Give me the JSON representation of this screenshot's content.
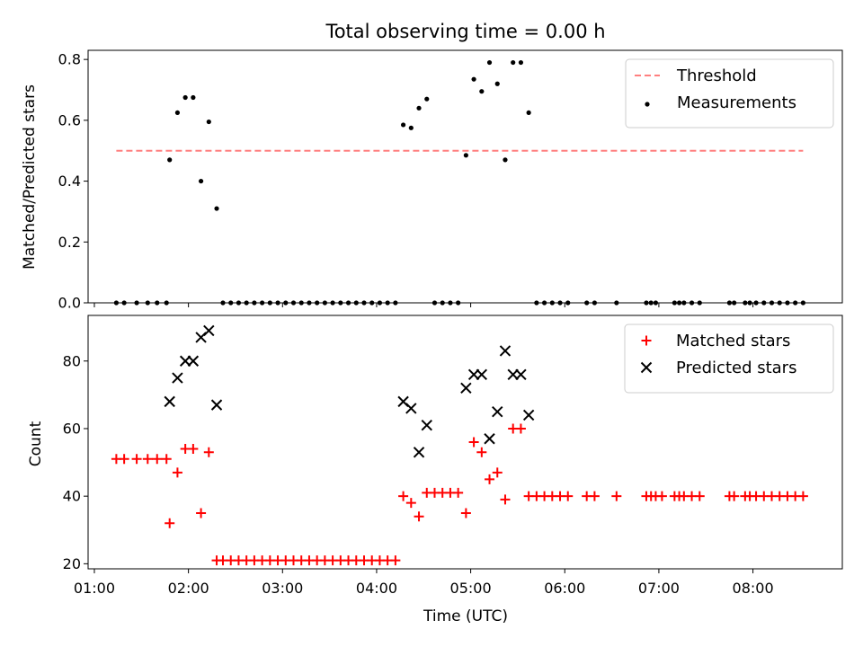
{
  "chart_data": [
    {
      "type": "scatter",
      "title": "Total observing time = 0.00 h",
      "ylabel": "Matched/Predicted stars",
      "xlabel": "",
      "xlim": [
        "00:56",
        "08:57"
      ],
      "ylim": [
        0,
        0.83
      ],
      "yticks": [
        0.0,
        0.2,
        0.4,
        0.6,
        0.8
      ],
      "ytick_labels": [
        "0.0",
        "0.2",
        "0.4",
        "0.6",
        "0.8"
      ],
      "xticks": [
        "01:00",
        "02:00",
        "03:00",
        "04:00",
        "05:00",
        "06:00",
        "07:00",
        "08:00"
      ],
      "legend_position": "top-right",
      "threshold": {
        "name": "Threshold",
        "value": 0.5,
        "x_start": "01:14",
        "x_end": "08:32",
        "color": "#ff7f7f",
        "style": "dashed"
      },
      "series": [
        {
          "name": "Measurements",
          "marker": "dot",
          "color": "#000000",
          "points": [
            [
              "01:14",
              0.0
            ],
            [
              "01:19",
              0.0
            ],
            [
              "01:27",
              0.0
            ],
            [
              "01:34",
              0.0
            ],
            [
              "01:40",
              0.0
            ],
            [
              "01:46",
              0.0
            ],
            [
              "01:48",
              0.47
            ],
            [
              "01:53",
              0.625
            ],
            [
              "01:58",
              0.675
            ],
            [
              "02:03",
              0.675
            ],
            [
              "02:08",
              0.4
            ],
            [
              "02:13",
              0.595
            ],
            [
              "02:18",
              0.31
            ],
            [
              "02:22",
              0.0
            ],
            [
              "02:27",
              0.0
            ],
            [
              "02:32",
              0.0
            ],
            [
              "02:37",
              0.0
            ],
            [
              "02:42",
              0.0
            ],
            [
              "02:47",
              0.0
            ],
            [
              "02:52",
              0.0
            ],
            [
              "02:57",
              0.0
            ],
            [
              "03:02",
              0.0
            ],
            [
              "03:07",
              0.0
            ],
            [
              "03:12",
              0.0
            ],
            [
              "03:17",
              0.0
            ],
            [
              "03:22",
              0.0
            ],
            [
              "03:27",
              0.0
            ],
            [
              "03:32",
              0.0
            ],
            [
              "03:37",
              0.0
            ],
            [
              "03:42",
              0.0
            ],
            [
              "03:47",
              0.0
            ],
            [
              "03:52",
              0.0
            ],
            [
              "03:57",
              0.0
            ],
            [
              "04:02",
              0.0
            ],
            [
              "04:07",
              0.0
            ],
            [
              "04:12",
              0.0
            ],
            [
              "04:17",
              0.585
            ],
            [
              "04:22",
              0.575
            ],
            [
              "04:27",
              0.64
            ],
            [
              "04:32",
              0.67
            ],
            [
              "04:37",
              0.0
            ],
            [
              "04:42",
              0.0
            ],
            [
              "04:47",
              0.0
            ],
            [
              "04:52",
              0.0
            ],
            [
              "04:57",
              0.485
            ],
            [
              "05:02",
              0.735
            ],
            [
              "05:07",
              0.695
            ],
            [
              "05:12",
              0.79
            ],
            [
              "05:17",
              0.72
            ],
            [
              "05:22",
              0.47
            ],
            [
              "05:27",
              0.79
            ],
            [
              "05:32",
              0.79
            ],
            [
              "05:37",
              0.625
            ],
            [
              "05:42",
              0.0
            ],
            [
              "05:47",
              0.0
            ],
            [
              "05:52",
              0.0
            ],
            [
              "05:57",
              0.0
            ],
            [
              "06:02",
              0.0
            ],
            [
              "06:14",
              0.0
            ],
            [
              "06:19",
              0.0
            ],
            [
              "06:33",
              0.0
            ],
            [
              "06:52",
              0.0
            ],
            [
              "06:55",
              0.0
            ],
            [
              "06:58",
              0.0
            ],
            [
              "07:10",
              0.0
            ],
            [
              "07:13",
              0.0
            ],
            [
              "07:16",
              0.0
            ],
            [
              "07:21",
              0.0
            ],
            [
              "07:26",
              0.0
            ],
            [
              "07:45",
              0.0
            ],
            [
              "07:48",
              0.0
            ],
            [
              "07:55",
              0.0
            ],
            [
              "07:58",
              0.0
            ],
            [
              "08:02",
              0.0
            ],
            [
              "08:07",
              0.0
            ],
            [
              "08:12",
              0.0
            ],
            [
              "08:17",
              0.0
            ],
            [
              "08:22",
              0.0
            ],
            [
              "08:27",
              0.0
            ],
            [
              "08:32",
              0.0
            ]
          ]
        }
      ]
    },
    {
      "type": "scatter",
      "title": "",
      "ylabel": "Count",
      "xlabel": "Time (UTC)",
      "xlim": [
        "00:56",
        "08:57"
      ],
      "ylim": [
        18.5,
        93.5
      ],
      "yticks": [
        20,
        40,
        60,
        80
      ],
      "ytick_labels": [
        "20",
        "40",
        "60",
        "80"
      ],
      "xticks": [
        "01:00",
        "02:00",
        "03:00",
        "04:00",
        "05:00",
        "06:00",
        "07:00",
        "08:00"
      ],
      "xtick_labels": [
        "01:00",
        "02:00",
        "03:00",
        "04:00",
        "05:00",
        "06:00",
        "07:00",
        "08:00"
      ],
      "legend_position": "top-right",
      "series": [
        {
          "name": "Matched stars",
          "marker": "plus",
          "color": "#ff0000",
          "points": [
            [
              "01:14",
              51
            ],
            [
              "01:19",
              51
            ],
            [
              "01:27",
              51
            ],
            [
              "01:34",
              51
            ],
            [
              "01:40",
              51
            ],
            [
              "01:46",
              51
            ],
            [
              "01:48",
              32
            ],
            [
              "01:53",
              47
            ],
            [
              "01:58",
              54
            ],
            [
              "02:03",
              54
            ],
            [
              "02:08",
              35
            ],
            [
              "02:13",
              53
            ],
            [
              "02:18",
              21
            ],
            [
              "02:22",
              21
            ],
            [
              "02:27",
              21
            ],
            [
              "02:32",
              21
            ],
            [
              "02:37",
              21
            ],
            [
              "02:42",
              21
            ],
            [
              "02:47",
              21
            ],
            [
              "02:52",
              21
            ],
            [
              "02:57",
              21
            ],
            [
              "03:02",
              21
            ],
            [
              "03:07",
              21
            ],
            [
              "03:12",
              21
            ],
            [
              "03:17",
              21
            ],
            [
              "03:22",
              21
            ],
            [
              "03:27",
              21
            ],
            [
              "03:32",
              21
            ],
            [
              "03:37",
              21
            ],
            [
              "03:42",
              21
            ],
            [
              "03:47",
              21
            ],
            [
              "03:52",
              21
            ],
            [
              "03:57",
              21
            ],
            [
              "04:02",
              21
            ],
            [
              "04:07",
              21
            ],
            [
              "04:12",
              21
            ],
            [
              "04:17",
              40
            ],
            [
              "04:22",
              38
            ],
            [
              "04:27",
              34
            ],
            [
              "04:32",
              41
            ],
            [
              "04:37",
              41
            ],
            [
              "04:42",
              41
            ],
            [
              "04:47",
              41
            ],
            [
              "04:52",
              41
            ],
            [
              "04:57",
              35
            ],
            [
              "05:02",
              56
            ],
            [
              "05:07",
              53
            ],
            [
              "05:12",
              45
            ],
            [
              "05:17",
              47
            ],
            [
              "05:22",
              39
            ],
            [
              "05:27",
              60
            ],
            [
              "05:32",
              60
            ],
            [
              "05:37",
              40
            ],
            [
              "05:42",
              40
            ],
            [
              "05:47",
              40
            ],
            [
              "05:52",
              40
            ],
            [
              "05:57",
              40
            ],
            [
              "06:02",
              40
            ],
            [
              "06:14",
              40
            ],
            [
              "06:19",
              40
            ],
            [
              "06:33",
              40
            ],
            [
              "06:52",
              40
            ],
            [
              "06:55",
              40
            ],
            [
              "06:58",
              40
            ],
            [
              "07:02",
              40
            ],
            [
              "07:10",
              40
            ],
            [
              "07:13",
              40
            ],
            [
              "07:16",
              40
            ],
            [
              "07:21",
              40
            ],
            [
              "07:26",
              40
            ],
            [
              "07:45",
              40
            ],
            [
              "07:48",
              40
            ],
            [
              "07:55",
              40
            ],
            [
              "07:58",
              40
            ],
            [
              "08:02",
              40
            ],
            [
              "08:07",
              40
            ],
            [
              "08:12",
              40
            ],
            [
              "08:17",
              40
            ],
            [
              "08:22",
              40
            ],
            [
              "08:27",
              40
            ],
            [
              "08:32",
              40
            ]
          ]
        },
        {
          "name": "Predicted stars",
          "marker": "x",
          "color": "#000000",
          "points": [
            [
              "01:48",
              68
            ],
            [
              "01:53",
              75
            ],
            [
              "01:58",
              80
            ],
            [
              "02:03",
              80
            ],
            [
              "02:08",
              87
            ],
            [
              "02:13",
              89
            ],
            [
              "02:18",
              67
            ],
            [
              "04:17",
              68
            ],
            [
              "04:22",
              66
            ],
            [
              "04:27",
              53
            ],
            [
              "04:32",
              61
            ],
            [
              "04:57",
              72
            ],
            [
              "05:02",
              76
            ],
            [
              "05:07",
              76
            ],
            [
              "05:12",
              57
            ],
            [
              "05:17",
              65
            ],
            [
              "05:22",
              83
            ],
            [
              "05:27",
              76
            ],
            [
              "05:32",
              76
            ],
            [
              "05:37",
              64
            ]
          ]
        }
      ]
    }
  ]
}
